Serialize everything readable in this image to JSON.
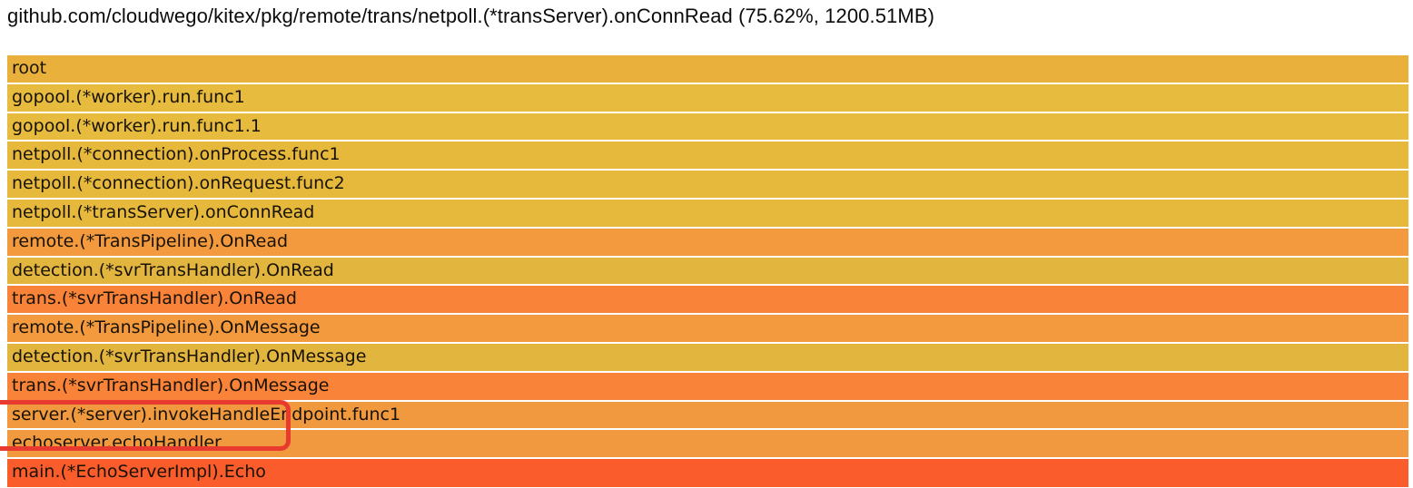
{
  "header": {
    "frame_info": "github.com/cloudwego/kitex/pkg/remote/trans/netpoll.(*transServer).onConnRead (75.62%, 1200.51MB)",
    "selected_percent": "75.62%",
    "selected_size": "1200.51MB"
  },
  "flamegraph": {
    "frames": [
      {
        "label": "root",
        "color": "#e9b13c"
      },
      {
        "label": "gopool.(*worker).run.func1",
        "color": "#e6bb3e"
      },
      {
        "label": "gopool.(*worker).run.func1.1",
        "color": "#e6bb3e"
      },
      {
        "label": "netpoll.(*connection).onProcess.func1",
        "color": "#e6b93d"
      },
      {
        "label": "netpoll.(*connection).onRequest.func2",
        "color": "#e6b93d"
      },
      {
        "label": "netpoll.(*transServer).onConnRead",
        "color": "#e6b93d"
      },
      {
        "label": "remote.(*TransPipeline).OnRead",
        "color": "#f29a3d"
      },
      {
        "label": "detection.(*svrTransHandler).OnRead",
        "color": "#e2b53e"
      },
      {
        "label": "trans.(*svrTransHandler).OnRead",
        "color": "#f98338"
      },
      {
        "label": "remote.(*TransPipeline).OnMessage",
        "color": "#f29a3d"
      },
      {
        "label": "detection.(*svrTransHandler).OnMessage",
        "color": "#e2b53e"
      },
      {
        "label": "trans.(*svrTransHandler).OnMessage",
        "color": "#f98338"
      },
      {
        "label": "server.(*server).invokeHandleEndpoint.func1",
        "color": "#f0993e"
      },
      {
        "label": "echoserver.echoHandler",
        "color": "#f0993e"
      },
      {
        "label": "main.(*EchoServerImpl).Echo",
        "color": "#fb5c2c"
      }
    ],
    "annotation_color": "#e83a2e"
  }
}
